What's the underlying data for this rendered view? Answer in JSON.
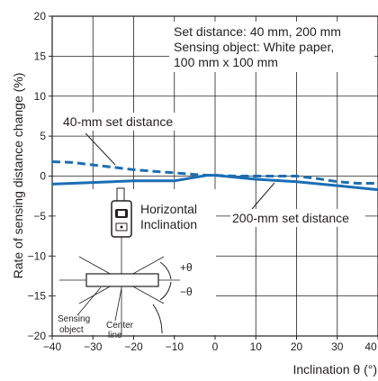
{
  "chart_data": {
    "type": "line",
    "xlabel": "Inclination θ (°)",
    "ylabel": "Rate of sensing distance change (%)",
    "xlim": [
      -40,
      40
    ],
    "ylim": [
      -20,
      20
    ],
    "x_ticks": [
      -40,
      -30,
      -20,
      -10,
      0,
      10,
      20,
      30,
      40
    ],
    "y_ticks": [
      -20,
      -15,
      -10,
      -5,
      0,
      5,
      10,
      15,
      20
    ],
    "grid": true,
    "note_lines": [
      "Set distance: 40 mm, 200 mm",
      "Sensing object: White paper,",
      "100 mm x 100 mm"
    ],
    "series": [
      {
        "name": "40-mm set distance",
        "style": "dashed",
        "color": "#1a6eb5",
        "x": [
          -40,
          -35,
          -30,
          -25,
          -20,
          -15,
          -10,
          -5,
          -2,
          0,
          5,
          10,
          15,
          20,
          25,
          30,
          35,
          40
        ],
        "y": [
          1.8,
          1.7,
          1.4,
          1.1,
          0.8,
          0.6,
          0.4,
          0.2,
          0.1,
          0.1,
          0.0,
          0.0,
          0.0,
          0.0,
          -0.3,
          -0.7,
          -0.9,
          -0.9
        ]
      },
      {
        "name": "200-mm set distance",
        "style": "solid",
        "color": "#1a6eb5",
        "x": [
          -40,
          -30,
          -20,
          -10,
          -2,
          0,
          10,
          20,
          30,
          40
        ],
        "y": [
          -1.0,
          -0.8,
          -0.6,
          -0.6,
          0.1,
          0.1,
          -0.4,
          -0.7,
          -1.2,
          -1.7
        ]
      }
    ],
    "annotations": [
      "40-mm set distance",
      "200-mm set distance"
    ]
  },
  "inset": {
    "title_line1": "Horizontal",
    "title_line2": "Inclination",
    "plus_theta": "+θ",
    "minus_theta": "−θ",
    "sensing_line1": "Sensing",
    "sensing_line2": "object",
    "center_line1": "Center",
    "center_line2": "line"
  }
}
